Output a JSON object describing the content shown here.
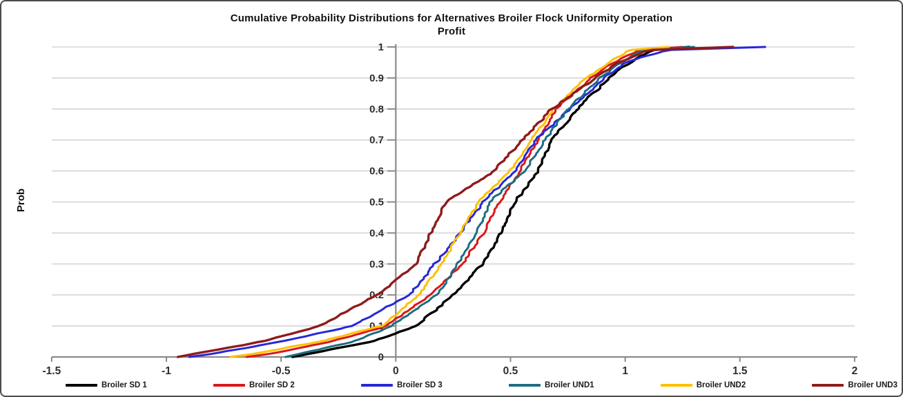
{
  "figure": {
    "title_line1": "Cumulative Probability Distributions for Alternatives Broiler Flock Uniformity Operation",
    "title_line2": "Profit",
    "y_axis_title": "Prob"
  },
  "chart_data": {
    "type": "line",
    "subtype": "empirical_cdf",
    "title": "Cumulative Probability Distributions for Alternatives Broiler Flock Uniformity Operation Profit",
    "xlabel": "",
    "ylabel": "Prob",
    "xlim": [
      -1.5,
      2
    ],
    "ylim": [
      0,
      1
    ],
    "grid": "horizontal-only",
    "legend_position": "bottom",
    "axis_color": "#8a8a8a",
    "gridline_color": "#d5d5d5",
    "tick_label_color": "#2e2e2e",
    "x_ticks": [
      {
        "value": -1.5,
        "label": "-1.5"
      },
      {
        "value": -1,
        "label": "-1"
      },
      {
        "value": -0.5,
        "label": "-0.5"
      },
      {
        "value": 0,
        "label": "0"
      },
      {
        "value": 0.5,
        "label": "0.5"
      },
      {
        "value": 1,
        "label": "1"
      },
      {
        "value": 1.5,
        "label": "1.5"
      },
      {
        "value": 2,
        "label": "2"
      }
    ],
    "y_ticks": [
      {
        "value": 0,
        "label": "0"
      },
      {
        "value": 0.1,
        "label": "0.1"
      },
      {
        "value": 0.2,
        "label": "0.2"
      },
      {
        "value": 0.3,
        "label": "0.3"
      },
      {
        "value": 0.4,
        "label": "0.4"
      },
      {
        "value": 0.5,
        "label": "0.5"
      },
      {
        "value": 0.6,
        "label": "0.6"
      },
      {
        "value": 0.7,
        "label": "0.7"
      },
      {
        "value": 0.8,
        "label": "0.8"
      },
      {
        "value": 0.9,
        "label": "0.9"
      },
      {
        "value": 1,
        "label": "1"
      }
    ],
    "quantile_probs": [
      0,
      0.01,
      0.05,
      0.1,
      0.2,
      0.3,
      0.4,
      0.5,
      0.6,
      0.7,
      0.8,
      0.9,
      0.95,
      0.99,
      1
    ],
    "series": [
      {
        "name": "Broiler SD 1",
        "color": "#000000",
        "quantile_x": [
          -0.45,
          -0.38,
          -0.1,
          0.09,
          0.25,
          0.38,
          0.46,
          0.52,
          0.62,
          0.68,
          0.79,
          0.93,
          1.02,
          1.12,
          1.28
        ]
      },
      {
        "name": "Broiler SD 2",
        "color": "#d91818",
        "quantile_x": [
          -0.65,
          -0.55,
          -0.28,
          -0.04,
          0.15,
          0.29,
          0.38,
          0.45,
          0.54,
          0.62,
          0.7,
          0.85,
          0.95,
          1.06,
          1.25
        ]
      },
      {
        "name": "Broiler SD 3",
        "color": "#2727d8",
        "quantile_x": [
          -0.9,
          -0.8,
          -0.5,
          -0.19,
          0.06,
          0.17,
          0.28,
          0.38,
          0.52,
          0.61,
          0.76,
          0.91,
          1.0,
          1.18,
          1.61
        ]
      },
      {
        "name": "Broiler UND1",
        "color": "#1d6d80",
        "quantile_x": [
          -0.48,
          -0.42,
          -0.18,
          -0.02,
          0.18,
          0.27,
          0.35,
          0.41,
          0.56,
          0.65,
          0.75,
          0.89,
          0.98,
          1.08,
          1.3
        ]
      },
      {
        "name": "Broiler UND2",
        "color": "#ffc000",
        "quantile_x": [
          -0.72,
          -0.62,
          -0.33,
          -0.06,
          0.1,
          0.2,
          0.28,
          0.36,
          0.5,
          0.59,
          0.69,
          0.83,
          0.93,
          1.02,
          1.19
        ]
      },
      {
        "name": "Broiler UND3",
        "color": "#8e1b1b",
        "quantile_x": [
          -0.95,
          -0.88,
          -0.58,
          -0.33,
          -0.08,
          0.09,
          0.15,
          0.22,
          0.43,
          0.55,
          0.68,
          0.87,
          0.97,
          1.1,
          1.47
        ]
      }
    ]
  }
}
